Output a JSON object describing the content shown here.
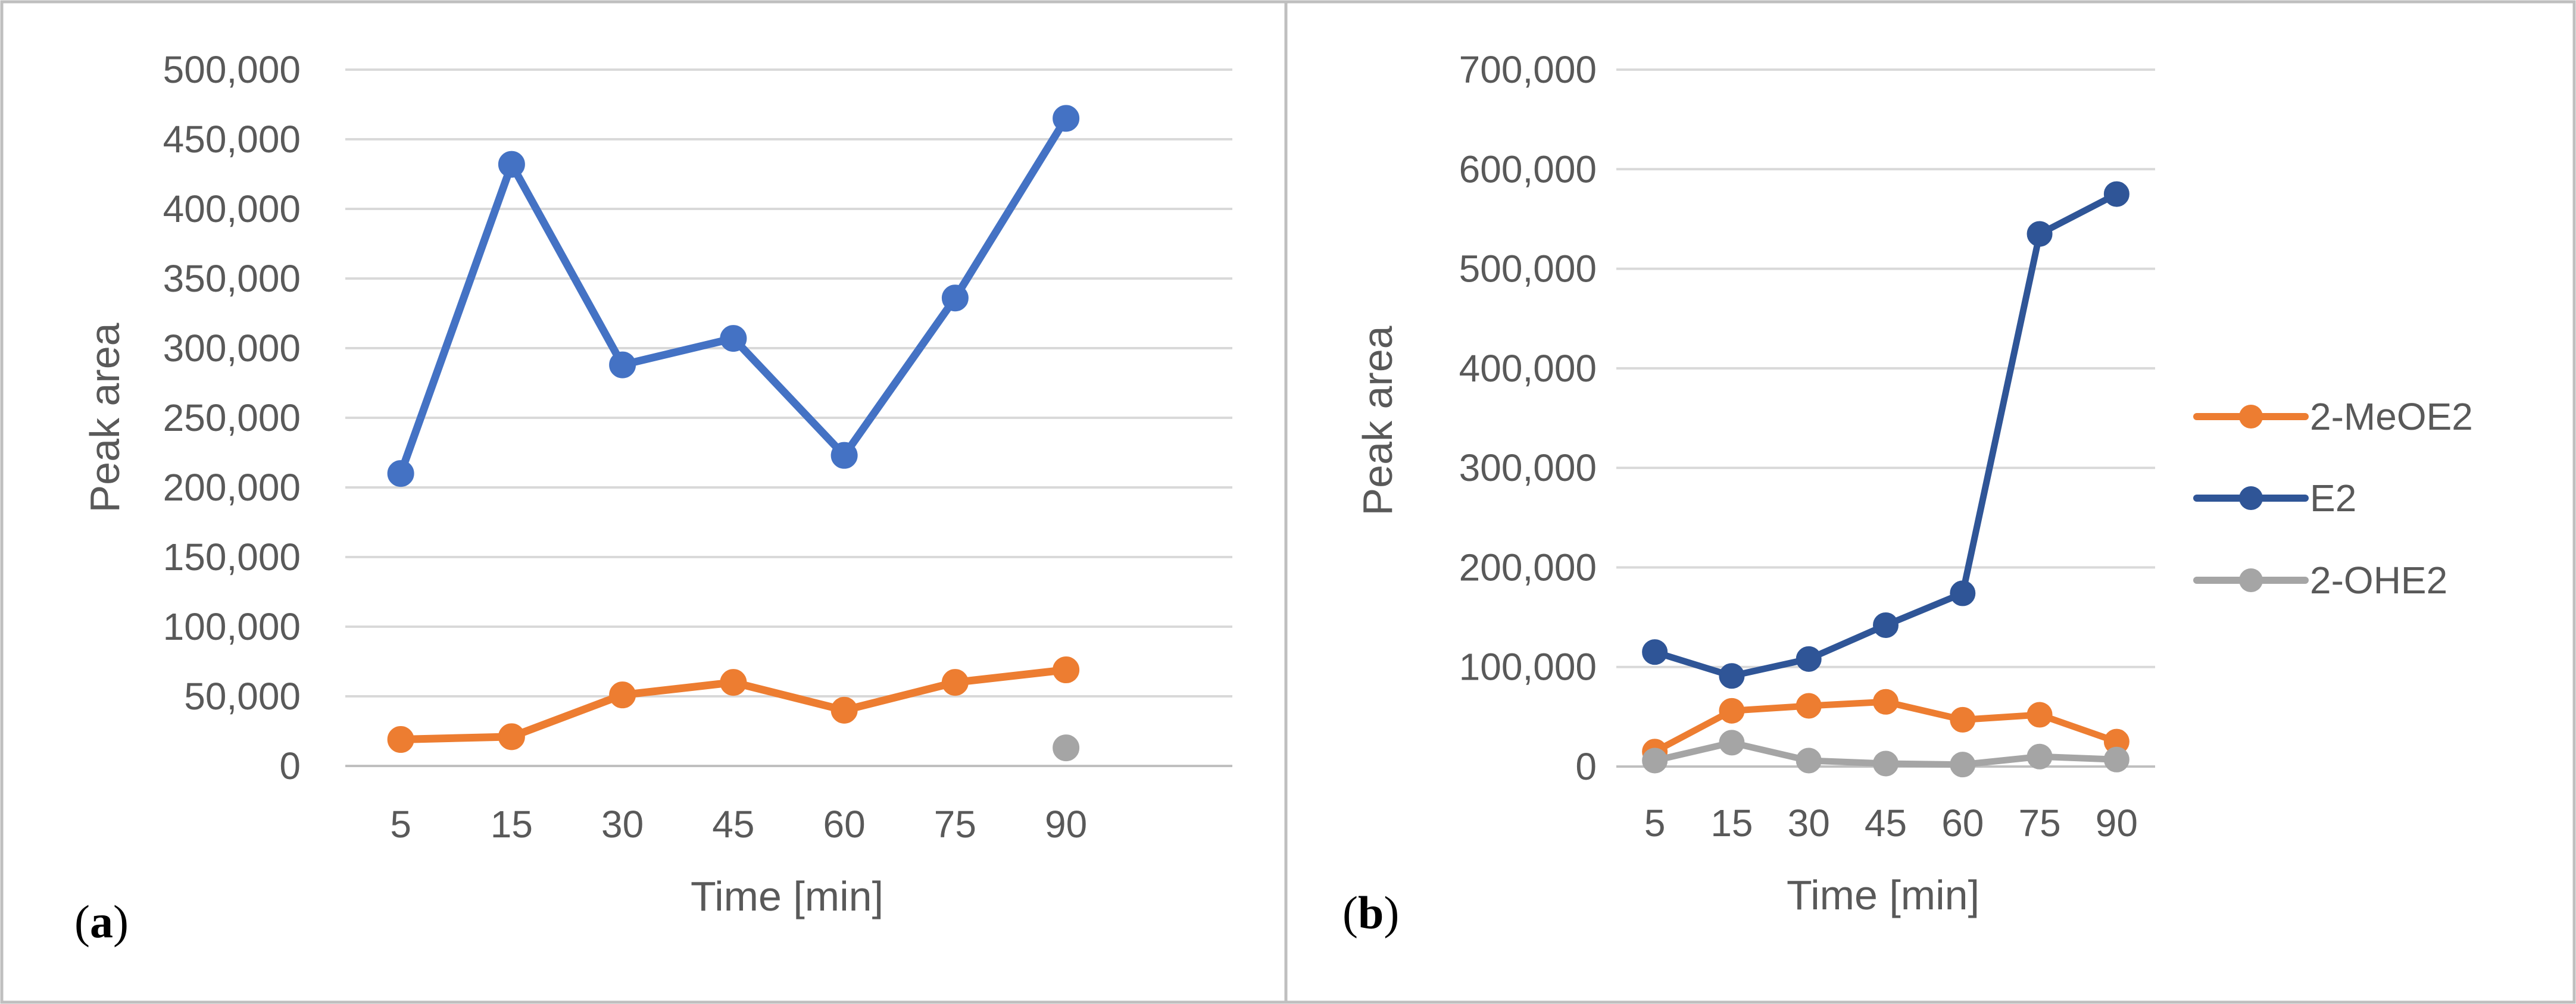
{
  "panel_labels": {
    "a": "a",
    "b": "b"
  },
  "colors": {
    "frame": "#bfbfbf",
    "grid": "#d9d9d9",
    "axis": "#bfbfbf",
    "MeOE2": "#ed7d31",
    "E2_a": "#4472c4",
    "E2_b": "#2f5597",
    "OHE2": "#a5a5a5"
  },
  "legend": {
    "items": [
      {
        "label": "2-MeOE2",
        "series": "2-MeOE2"
      },
      {
        "label": "E2",
        "series": "E2"
      },
      {
        "label": "2-OHE2",
        "series": "2-OHE2"
      }
    ]
  },
  "chart_data": [
    {
      "type": "line",
      "panel": "a",
      "title": "",
      "xlabel": "Time [min]",
      "ylabel": "Peak area",
      "ylim": [
        0,
        500000
      ],
      "ytick_values": [
        0,
        50000,
        100000,
        150000,
        200000,
        250000,
        300000,
        350000,
        400000,
        450000,
        500000
      ],
      "ytick_labels": [
        "0",
        "50,000",
        "100,000",
        "150,000",
        "200,000",
        "250,000",
        "300,000",
        "350,000",
        "400,000",
        "450,000",
        "500,000"
      ],
      "categories": [
        "5",
        "15",
        "30",
        "45",
        "60",
        "75",
        "90"
      ],
      "n_slots": 8,
      "grid": true,
      "legend": "none",
      "series": [
        {
          "name": "E2",
          "color": "#4472c4",
          "values": [
            210000,
            432000,
            288000,
            307000,
            223000,
            336000,
            465000
          ]
        },
        {
          "name": "2-MeOE2",
          "color": "#ed7d31",
          "values": [
            19000,
            21000,
            51000,
            60000,
            40000,
            60000,
            69000
          ]
        },
        {
          "name": "2-OHE2",
          "color": "#a5a5a5",
          "values": [
            null,
            null,
            null,
            null,
            null,
            null,
            13000
          ]
        }
      ]
    },
    {
      "type": "line",
      "panel": "b",
      "title": "",
      "xlabel": "Time [min]",
      "ylabel": "Peak area",
      "ylim": [
        0,
        700000
      ],
      "ytick_values": [
        0,
        100000,
        200000,
        300000,
        400000,
        500000,
        600000,
        700000
      ],
      "ytick_labels": [
        "0",
        "100,000",
        "200,000",
        "300,000",
        "400,000",
        "500,000",
        "600,000",
        "700,000"
      ],
      "categories": [
        "5",
        "15",
        "30",
        "45",
        "60",
        "75",
        "90"
      ],
      "n_slots": 7,
      "grid": true,
      "legend": "right",
      "series": [
        {
          "name": "E2",
          "color": "#2f5597",
          "values": [
            115000,
            91000,
            108000,
            142000,
            174000,
            535000,
            575000
          ]
        },
        {
          "name": "2-MeOE2",
          "color": "#ed7d31",
          "values": [
            15000,
            56000,
            61000,
            65000,
            47000,
            52000,
            25000
          ]
        },
        {
          "name": "2-OHE2",
          "color": "#a5a5a5",
          "values": [
            6000,
            24000,
            6000,
            3000,
            2000,
            10000,
            7000
          ]
        }
      ]
    }
  ]
}
